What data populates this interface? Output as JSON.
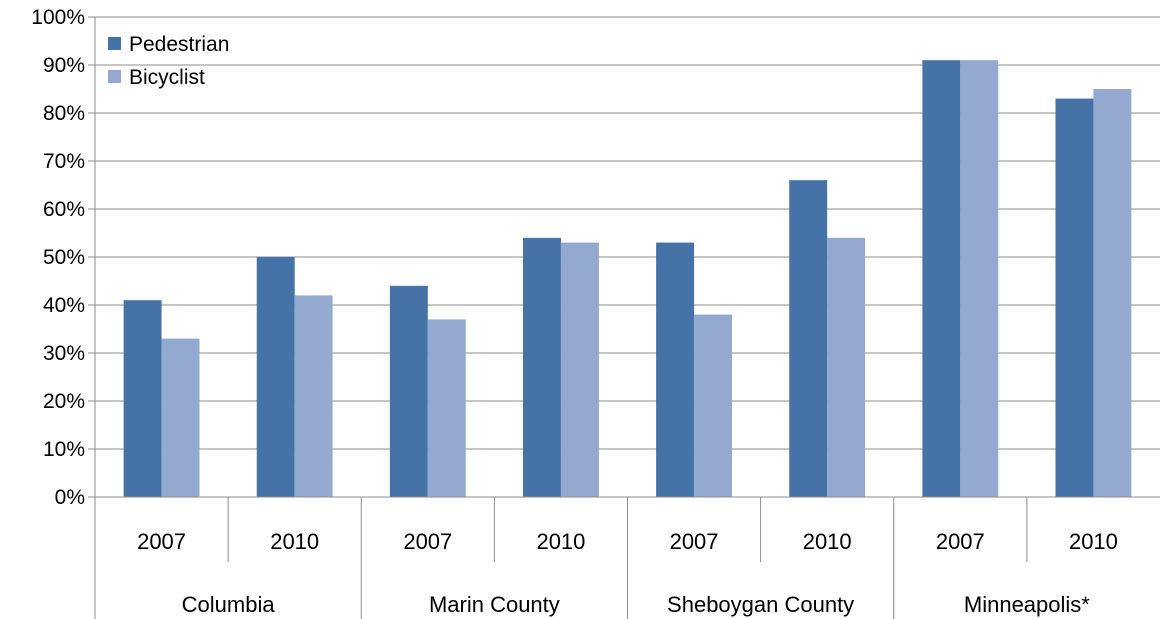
{
  "chart_data": {
    "type": "bar",
    "title": "",
    "xlabel": "",
    "ylabel": "",
    "ylim": [
      0,
      100
    ],
    "y_ticks": [
      "0%",
      "10%",
      "20%",
      "30%",
      "40%",
      "50%",
      "60%",
      "70%",
      "80%",
      "90%",
      "100%"
    ],
    "grid": "horizontal",
    "legend_position": "top-left inside",
    "groups": [
      {
        "label": "Columbia",
        "years": [
          "2007",
          "2010"
        ]
      },
      {
        "label": "Marin County",
        "years": [
          "2007",
          "2010"
        ]
      },
      {
        "label": "Sheboygan County",
        "years": [
          "2007",
          "2010"
        ]
      },
      {
        "label": "Minneapolis*",
        "years": [
          "2007",
          "2010"
        ]
      }
    ],
    "series": [
      {
        "name": "Pedestrian",
        "color": "#4572A7",
        "values": [
          41,
          50,
          44,
          54,
          53,
          66,
          91,
          83
        ]
      },
      {
        "name": "Bicyclist",
        "color": "#93A9CF",
        "values": [
          33,
          42,
          37,
          53,
          38,
          54,
          91,
          85
        ]
      }
    ],
    "colors": {
      "grid": "#8C8C8C",
      "axis": "#8C8C8C"
    }
  }
}
